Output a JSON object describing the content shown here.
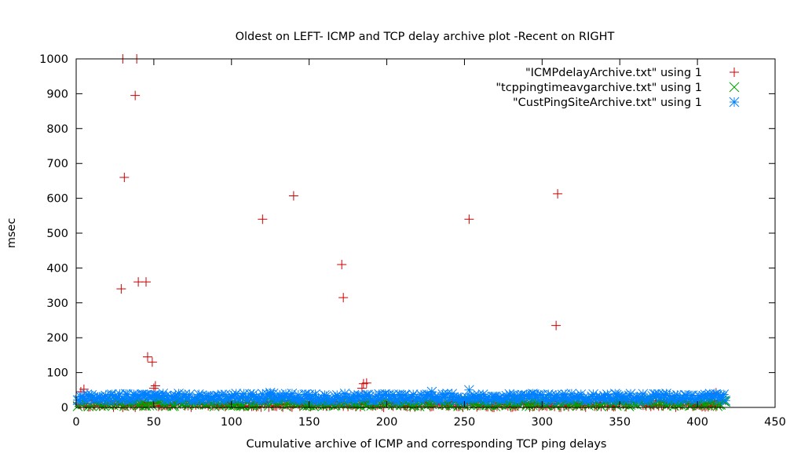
{
  "chart_data": {
    "type": "scatter",
    "title": "Oldest on LEFT- ICMP and TCP delay archive plot -Recent on RIGHT",
    "xlabel": "Cumulative archive of ICMP and corresponding TCP ping delays",
    "ylabel": "msec",
    "xlim": [
      0,
      450
    ],
    "ylim": [
      0,
      1000
    ],
    "xticks": [
      0,
      50,
      100,
      150,
      200,
      250,
      300,
      350,
      400,
      450
    ],
    "yticks": [
      0,
      100,
      200,
      300,
      400,
      500,
      600,
      700,
      800,
      900,
      1000
    ],
    "grid": false,
    "legend_position": "top-right",
    "series": [
      {
        "name": "\"ICMPdelayArchive.txt\" using 1",
        "marker": "plus",
        "color": "#cc0000",
        "x_range": [
          1,
          415
        ],
        "baseline_y_range": [
          0,
          20
        ],
        "outliers": [
          {
            "x": 3,
            "y": 45
          },
          {
            "x": 5,
            "y": 52
          },
          {
            "x": 29,
            "y": 340
          },
          {
            "x": 30,
            "y": 1000
          },
          {
            "x": 31,
            "y": 660
          },
          {
            "x": 38,
            "y": 895
          },
          {
            "x": 39,
            "y": 1000
          },
          {
            "x": 40,
            "y": 360
          },
          {
            "x": 45,
            "y": 360
          },
          {
            "x": 46,
            "y": 145
          },
          {
            "x": 49,
            "y": 130
          },
          {
            "x": 50,
            "y": 55
          },
          {
            "x": 51,
            "y": 62
          },
          {
            "x": 120,
            "y": 540
          },
          {
            "x": 140,
            "y": 607
          },
          {
            "x": 171,
            "y": 410
          },
          {
            "x": 172,
            "y": 315
          },
          {
            "x": 184,
            "y": 55
          },
          {
            "x": 185,
            "y": 68
          },
          {
            "x": 187,
            "y": 70
          },
          {
            "x": 253,
            "y": 540
          },
          {
            "x": 309,
            "y": 235
          },
          {
            "x": 310,
            "y": 613
          },
          {
            "x": 412,
            "y": 42
          }
        ]
      },
      {
        "name": "\"tcppingtimeavgarchive.txt\" using 1",
        "marker": "x",
        "color": "#00a000",
        "x_range": [
          1,
          418
        ],
        "baseline_y_range": [
          3,
          22
        ]
      },
      {
        "name": "\"CustPingSiteArchive.txt\" using 1",
        "marker": "star",
        "color": "#0080ff",
        "x_range": [
          1,
          418
        ],
        "baseline_y_range": [
          18,
          40
        ],
        "outliers": [
          {
            "x": 125,
            "y": 42
          },
          {
            "x": 229,
            "y": 45
          },
          {
            "x": 253,
            "y": 50
          }
        ]
      }
    ]
  }
}
